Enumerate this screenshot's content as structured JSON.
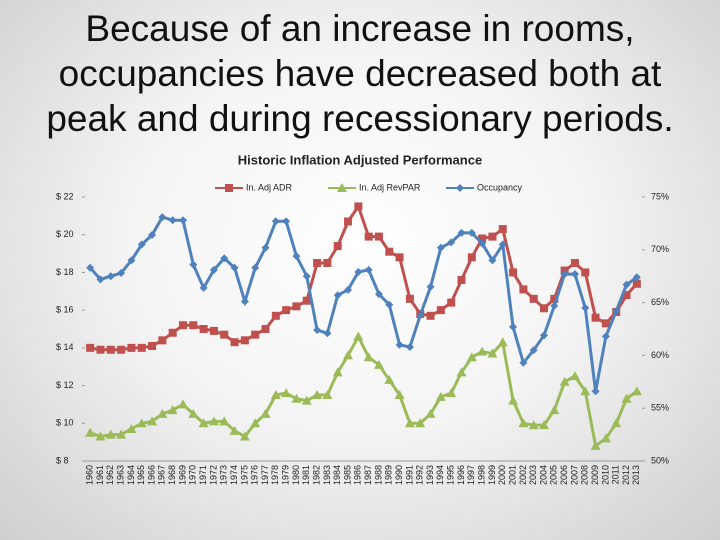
{
  "slide_title": "Because of an increase in rooms, occupancies have decreased both at peak and during recessionary periods.",
  "chart_data": {
    "type": "line",
    "title": "Historic Inflation Adjusted Performance",
    "categories": [
      "1960",
      "1961",
      "1962",
      "1963",
      "1964",
      "1965",
      "1966",
      "1967",
      "1968",
      "1969",
      "1970",
      "1971",
      "1972",
      "1973",
      "1974",
      "1975",
      "1976",
      "1977",
      "1978",
      "1979",
      "1980",
      "1981",
      "1982",
      "1983",
      "1984",
      "1985",
      "1986",
      "1987",
      "1988",
      "1989",
      "1990",
      "1991",
      "1992",
      "1993",
      "1994",
      "1995",
      "1996",
      "1997",
      "1998",
      "1999",
      "2000",
      "2001",
      "2002",
      "2003",
      "2004",
      "2005",
      "2006",
      "2007",
      "2008",
      "2009",
      "2010",
      "2011",
      "2012",
      "2013"
    ],
    "series": [
      {
        "name": "In. Adj ADR",
        "color": "#c0504d",
        "marker": "square",
        "values": [
          14.0,
          13.9,
          13.9,
          13.9,
          14.0,
          14.0,
          14.1,
          14.4,
          14.8,
          15.2,
          15.2,
          15.0,
          14.9,
          14.7,
          14.3,
          14.4,
          14.7,
          15.0,
          15.7,
          16.0,
          16.2,
          16.5,
          18.5,
          18.5,
          19.4,
          20.7,
          21.5,
          19.9,
          19.9,
          19.1,
          18.8,
          16.6,
          15.8,
          15.7,
          16.0,
          16.4,
          17.6,
          18.8,
          19.8,
          19.9,
          20.3,
          18.0,
          17.1,
          16.6,
          16.1,
          16.6,
          18.1,
          18.5,
          18.0,
          15.6,
          15.3,
          15.9,
          16.8,
          17.4
        ]
      },
      {
        "name": "In. Adj RevPAR",
        "color": "#9bbb59",
        "marker": "triangle",
        "values": [
          9.5,
          9.3,
          9.4,
          9.4,
          9.7,
          10.0,
          10.1,
          10.5,
          10.7,
          11.0,
          10.5,
          10.0,
          10.1,
          10.1,
          9.6,
          9.3,
          10.0,
          10.5,
          11.5,
          11.6,
          11.3,
          11.2,
          11.5,
          11.5,
          12.7,
          13.6,
          14.6,
          13.5,
          13.1,
          12.3,
          11.5,
          10.0,
          10.0,
          10.5,
          11.4,
          11.6,
          12.7,
          13.5,
          13.8,
          13.7,
          14.3,
          11.2,
          10.0,
          9.9,
          9.9,
          10.7,
          12.2,
          12.5,
          11.7,
          8.8,
          9.2,
          10.0,
          11.3,
          11.7
        ]
      },
      {
        "name": "Occupancy",
        "color": "#4f81bd",
        "marker": "diamond",
        "axis": "y2",
        "values": [
          68.3,
          67.2,
          67.5,
          67.8,
          69.0,
          70.5,
          71.4,
          73.1,
          72.8,
          72.8,
          68.6,
          66.4,
          68.1,
          69.2,
          68.3,
          65.1,
          68.3,
          70.2,
          72.7,
          72.7,
          69.4,
          67.5,
          62.4,
          62.1,
          65.7,
          66.2,
          67.9,
          68.1,
          65.8,
          64.8,
          61.0,
          60.8,
          63.8,
          66.5,
          70.2,
          70.7,
          71.6,
          71.6,
          70.6,
          69.0,
          70.5,
          62.7,
          59.3,
          60.5,
          61.9,
          64.7,
          67.7,
          67.7,
          64.5,
          56.6,
          61.8,
          64.2,
          66.7,
          67.4
        ]
      }
    ],
    "ylim": [
      8,
      22
    ],
    "yticks": [
      {
        "value": 8,
        "label": "$ 8"
      },
      {
        "value": 10,
        "label": "$ 10"
      },
      {
        "value": 12,
        "label": "$ 12"
      },
      {
        "value": 14,
        "label": "$ 14"
      },
      {
        "value": 16,
        "label": "$ 16"
      },
      {
        "value": 18,
        "label": "$ 18"
      },
      {
        "value": 20,
        "label": "$ 20"
      },
      {
        "value": 22,
        "label": "$ 22"
      }
    ],
    "y2lim": [
      50,
      75
    ],
    "y2ticks": [
      {
        "value": 50,
        "label": "50%"
      },
      {
        "value": 55,
        "label": "55%"
      },
      {
        "value": 60,
        "label": "60%"
      },
      {
        "value": 65,
        "label": "65%"
      },
      {
        "value": 70,
        "label": "70%"
      },
      {
        "value": 75,
        "label": "75%"
      }
    ],
    "legend": "top"
  }
}
